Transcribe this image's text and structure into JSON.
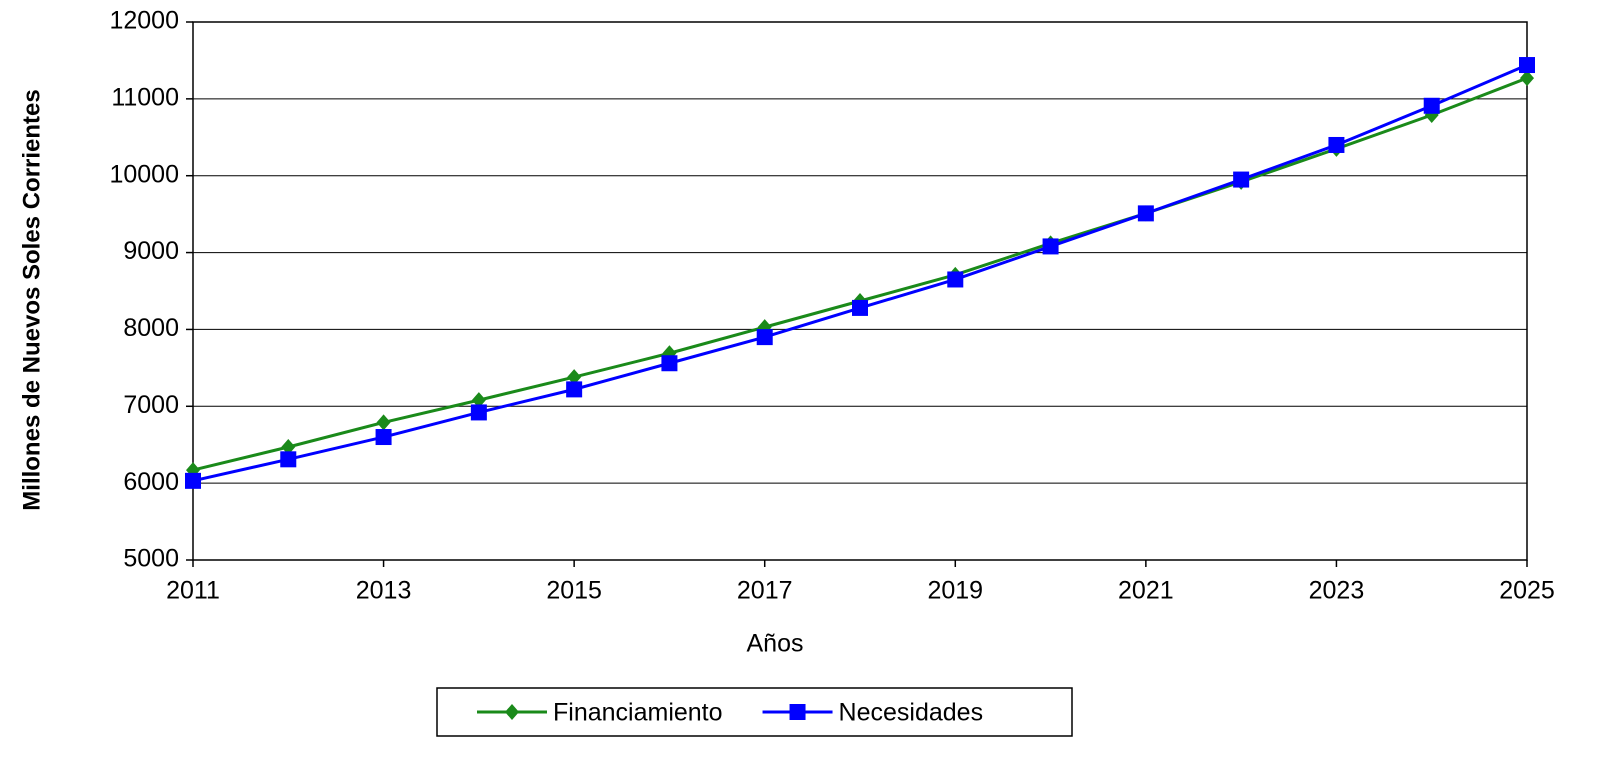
{
  "chart_data": {
    "type": "line",
    "xlabel": "Años",
    "ylabel": "Millones de Nuevos Soles Corrientes",
    "x": [
      2011,
      2012,
      2013,
      2014,
      2015,
      2016,
      2017,
      2018,
      2019,
      2020,
      2021,
      2022,
      2023,
      2024,
      2025
    ],
    "series": [
      {
        "name": "Financiamiento",
        "color": "#1a8a1a",
        "marker": "diamond",
        "values": [
          6170,
          6470,
          6790,
          7080,
          7380,
          7690,
          8030,
          8370,
          8710,
          9120,
          9510,
          9920,
          10350,
          10790,
          11270
        ]
      },
      {
        "name": "Necesidades",
        "color": "#0000ff",
        "marker": "square",
        "values": [
          6030,
          6310,
          6600,
          6920,
          7220,
          7560,
          7900,
          8280,
          8650,
          9080,
          9510,
          9950,
          10400,
          10910,
          11440
        ]
      }
    ],
    "xlim": [
      2011,
      2025
    ],
    "xticks": [
      2011,
      2013,
      2015,
      2017,
      2019,
      2021,
      2023,
      2025
    ],
    "ylim": [
      5000,
      12000
    ],
    "yticks": [
      5000,
      6000,
      7000,
      8000,
      9000,
      10000,
      11000,
      12000
    ],
    "grid": true,
    "legend": "bottom"
  }
}
